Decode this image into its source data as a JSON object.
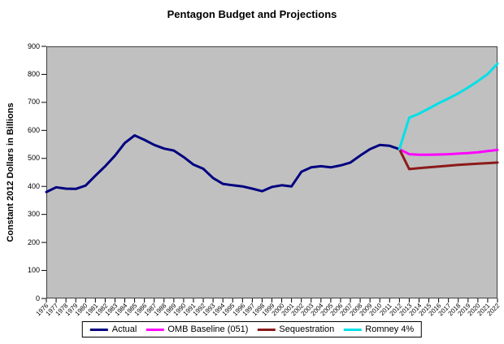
{
  "chart_data": {
    "type": "line",
    "title": "Pentagon Budget and Projections",
    "xlabel": "",
    "ylabel": "Constant 2012 Dollars in Billions",
    "ylim": [
      0,
      900
    ],
    "y_ticks": [
      0,
      100,
      200,
      300,
      400,
      500,
      600,
      700,
      800,
      900
    ],
    "x": [
      1976,
      1977,
      1978,
      1979,
      1980,
      1981,
      1982,
      1983,
      1984,
      1985,
      1986,
      1987,
      1988,
      1989,
      1990,
      1991,
      1992,
      1993,
      1994,
      1995,
      1996,
      1997,
      1998,
      1999,
      2000,
      2001,
      2002,
      2003,
      2004,
      2005,
      2006,
      2007,
      2008,
      2009,
      2010,
      2011,
      2012,
      2013,
      2014,
      2015,
      2016,
      2017,
      2018,
      2019,
      2020,
      2021,
      2022
    ],
    "grid": false,
    "plot_bg_color": "#C0C0C0",
    "legend_position": "bottom",
    "series": [
      {
        "name": "Actual",
        "color": "#000080",
        "start_year": 1976,
        "values": [
          380,
          397,
          392,
          391,
          403,
          438,
          472,
          510,
          555,
          582,
          566,
          548,
          535,
          528,
          505,
          478,
          463,
          430,
          409,
          404,
          400,
          392,
          383,
          398,
          404,
          400,
          452,
          468,
          472,
          468,
          475,
          485,
          510,
          533,
          548,
          545,
          533
        ]
      },
      {
        "name": "OMB Baseline (051)",
        "color": "#FF00FF",
        "start_year": 2012,
        "values": [
          533,
          515,
          513,
          513,
          514,
          515,
          517,
          519,
          522,
          526,
          530
        ]
      },
      {
        "name": "Sequestration",
        "color": "#8B1A1A",
        "start_year": 2012,
        "values": [
          533,
          462,
          465,
          468,
          471,
          474,
          477,
          479,
          481,
          483,
          485
        ]
      },
      {
        "name": "Romney 4%",
        "color": "#00E0E8",
        "start_year": 2012,
        "values": [
          533,
          645,
          660,
          678,
          697,
          714,
          732,
          753,
          776,
          801,
          838
        ]
      }
    ]
  }
}
